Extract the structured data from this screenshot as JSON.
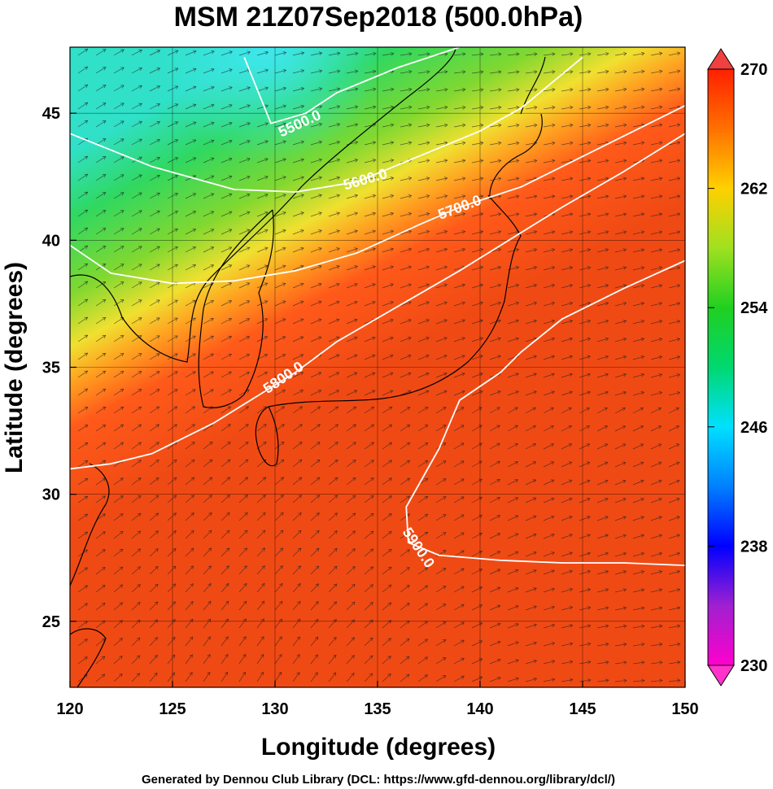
{
  "chart_data": {
    "type": "heatmap",
    "title": "MSM 21Z07Sep2018 (500.0hPa)",
    "xlabel": "Longitude (degrees)",
    "ylabel": "Latitude  (degrees)",
    "footer": "Generated by Dennou Club Library (DCL: https://www.gfd-dennou.org/library/dcl/)",
    "xlim": [
      120,
      150
    ],
    "ylim": [
      22.4,
      47.6
    ],
    "x_ticks": [
      "120",
      "125",
      "130",
      "135",
      "140",
      "145",
      "150"
    ],
    "y_ticks": [
      "25",
      "30",
      "35",
      "40",
      "45"
    ],
    "colorbar": {
      "range": [
        230,
        270
      ],
      "ticks": [
        "230",
        "238",
        "246",
        "254",
        "262",
        "270"
      ],
      "extend": "both"
    },
    "shading_field": "temperature (K)",
    "shading_gradient": [
      {
        "lon": 129.5,
        "lat": 47.5,
        "value": 246
      },
      {
        "lon": 127.5,
        "lat": 42.5,
        "value": 254
      },
      {
        "lon": 132.5,
        "lat": 37.5,
        "value": 262
      },
      {
        "lon": 137.5,
        "lat": 32.5,
        "value": 267
      }
    ],
    "contours": [
      {
        "label": "5500.0",
        "label_lon": 131.2,
        "label_lat": 44.6,
        "points": [
          [
            128.5,
            47.2
          ],
          [
            129.8,
            44.6
          ],
          [
            131.5,
            45.0
          ],
          [
            133.0,
            45.8
          ],
          [
            136.0,
            46.8
          ],
          [
            139.0,
            47.6
          ]
        ]
      },
      {
        "label": "5600.0",
        "label_lon": 134.4,
        "label_lat": 42.4,
        "points": [
          [
            120.0,
            44.2
          ],
          [
            124.0,
            42.9
          ],
          [
            128.0,
            42.0
          ],
          [
            131.0,
            41.9
          ],
          [
            134.0,
            42.3
          ],
          [
            137.0,
            43.3
          ],
          [
            140.0,
            44.3
          ],
          [
            142.0,
            45.2
          ],
          [
            145.0,
            47.2
          ]
        ]
      },
      {
        "label": "5700.0",
        "label_lon": 139.0,
        "label_lat": 41.3,
        "points": [
          [
            120.0,
            39.8
          ],
          [
            122.0,
            38.7
          ],
          [
            125.0,
            38.3
          ],
          [
            128.0,
            38.4
          ],
          [
            131.0,
            38.8
          ],
          [
            134.0,
            39.5
          ],
          [
            137.0,
            40.6
          ],
          [
            139.0,
            41.3
          ],
          [
            142.0,
            42.1
          ],
          [
            146.0,
            43.7
          ],
          [
            150.0,
            45.3
          ]
        ]
      },
      {
        "label": "5800.0",
        "label_lon": 130.4,
        "label_lat": 34.6,
        "points": [
          [
            120.0,
            31.0
          ],
          [
            122.0,
            31.2
          ],
          [
            124.0,
            31.6
          ],
          [
            127.0,
            32.8
          ],
          [
            129.0,
            33.8
          ],
          [
            131.0,
            34.8
          ],
          [
            133.0,
            36.0
          ],
          [
            136.0,
            37.4
          ],
          [
            139.0,
            38.8
          ],
          [
            141.0,
            39.8
          ],
          [
            144.0,
            41.3
          ],
          [
            147.0,
            42.7
          ],
          [
            150.0,
            44.2
          ]
        ]
      },
      {
        "label": "5900.0",
        "label_lon": 137.0,
        "label_lat": 27.9,
        "points": [
          [
            150.0,
            39.2
          ],
          [
            147.0,
            38.1
          ],
          [
            144.0,
            36.9
          ],
          [
            142.0,
            35.6
          ],
          [
            141.0,
            34.8
          ],
          [
            139.0,
            33.7
          ],
          [
            138.0,
            31.8
          ],
          [
            136.4,
            29.5
          ],
          [
            136.5,
            28.1
          ],
          [
            138.0,
            27.6
          ],
          [
            141.0,
            27.4
          ],
          [
            144.0,
            27.3
          ],
          [
            147.0,
            27.3
          ],
          [
            150.0,
            27.2
          ]
        ]
      }
    ]
  }
}
